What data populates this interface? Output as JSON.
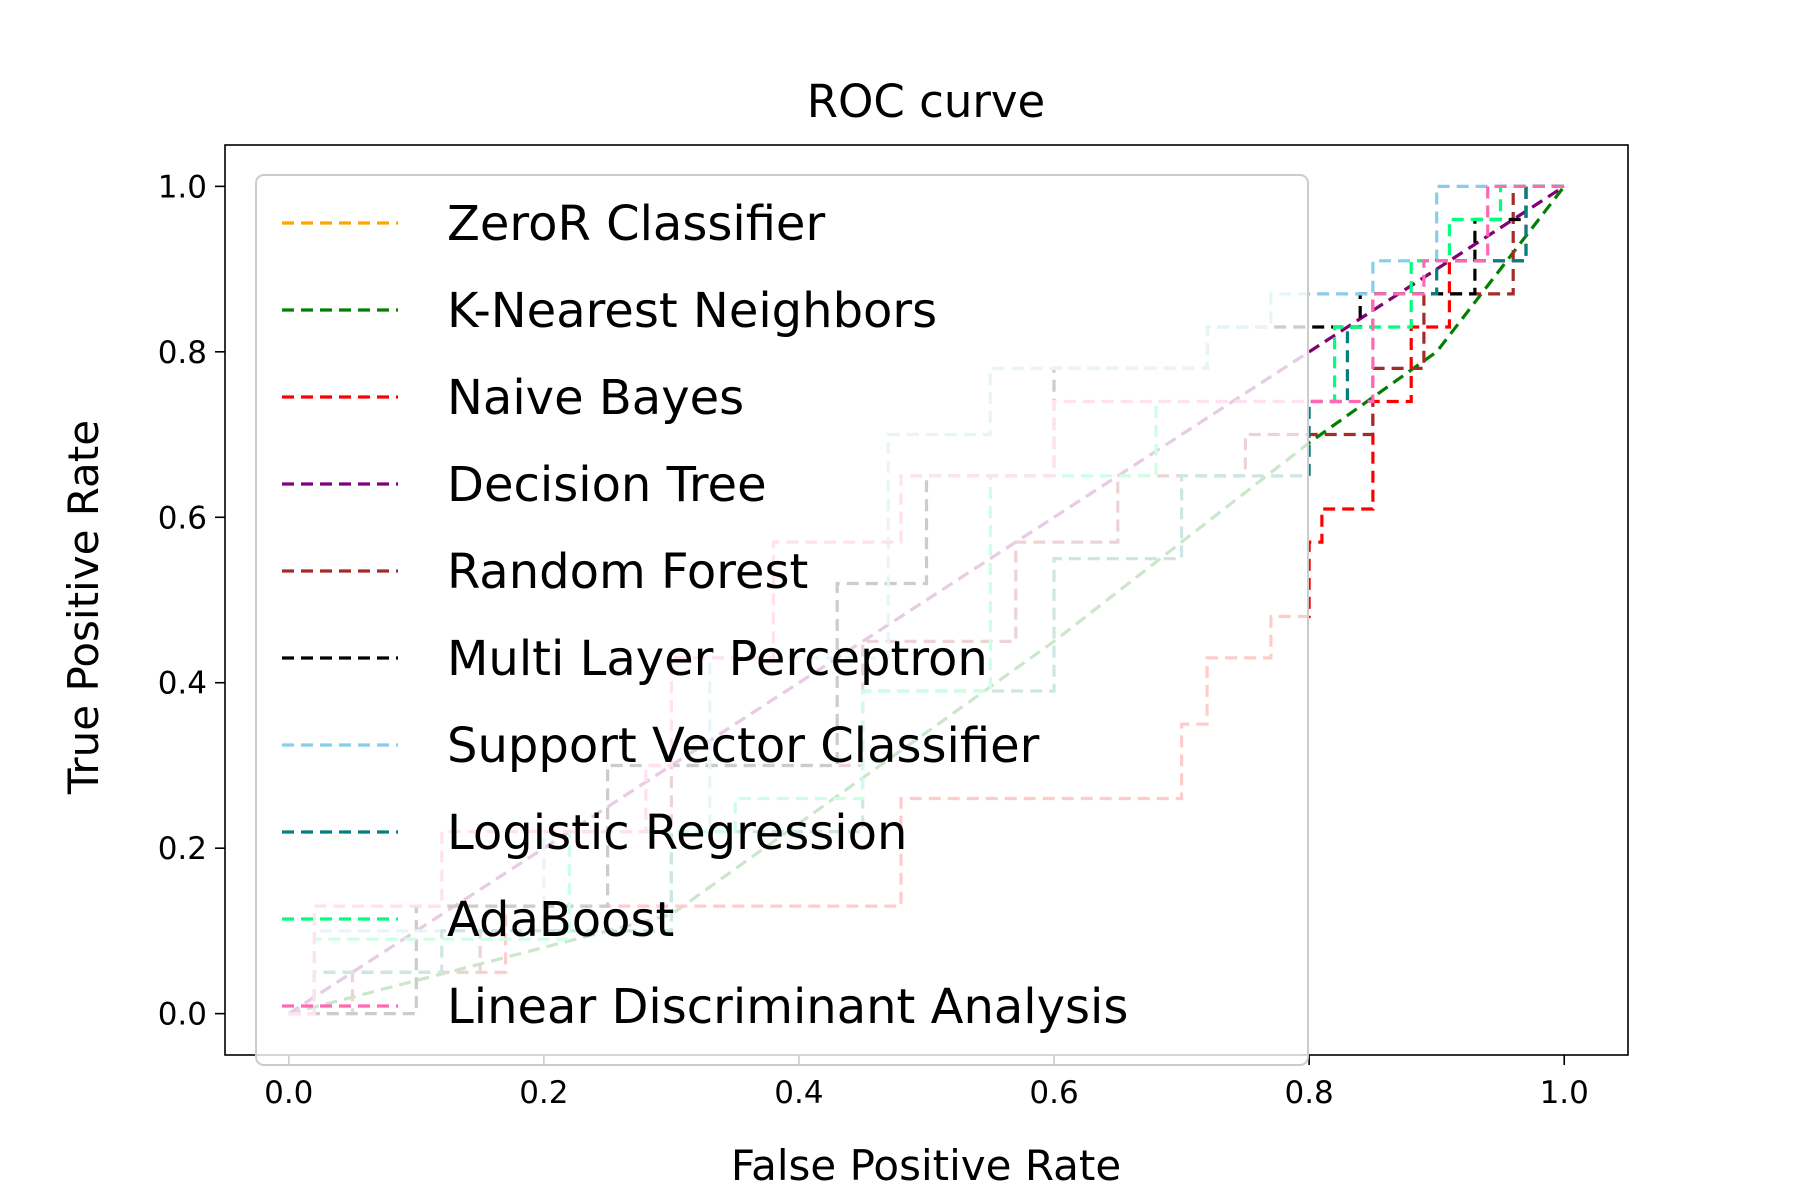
{
  "chart_data": {
    "type": "line",
    "title": "ROC curve",
    "xlabel": "False Positive Rate",
    "ylabel": "True Positive Rate",
    "xlim": [
      -0.05,
      1.05
    ],
    "ylim": [
      -0.05,
      1.05
    ],
    "xticks": [
      "0.0",
      "0.2",
      "0.4",
      "0.6",
      "0.8",
      "1.0"
    ],
    "yticks": [
      "0.0",
      "0.2",
      "0.4",
      "0.6",
      "0.8",
      "1.0"
    ],
    "legend_position": "upper-left",
    "grid": false,
    "series": [
      {
        "name": "ZeroR Classifier",
        "color": "#ffa500",
        "x": [
          0,
          1
        ],
        "y": [
          0,
          1
        ]
      },
      {
        "name": "K-Nearest Neighbors",
        "color": "#008000",
        "x": [
          0,
          0.3,
          0.6,
          0.8,
          0.9,
          1.0
        ],
        "y": [
          0,
          0.12,
          0.45,
          0.69,
          0.8,
          1.0
        ]
      },
      {
        "name": "Naive Bayes",
        "color": "#ff0000",
        "x": [
          0,
          0.02,
          0.02,
          0.17,
          0.17,
          0.48,
          0.48,
          0.7,
          0.7,
          0.72,
          0.72,
          0.77,
          0.77,
          0.8,
          0.8,
          0.81,
          0.81,
          0.82,
          0.82,
          0.85,
          0.85,
          0.88,
          0.88,
          0.91,
          0.91,
          0.97,
          0.97,
          1.0
        ],
        "y": [
          0,
          0,
          0.05,
          0.05,
          0.13,
          0.13,
          0.26,
          0.26,
          0.35,
          0.35,
          0.43,
          0.43,
          0.48,
          0.48,
          0.57,
          0.57,
          0.61,
          0.61,
          0.61,
          0.61,
          0.74,
          0.74,
          0.83,
          0.83,
          0.91,
          0.91,
          1.0,
          1.0
        ]
      },
      {
        "name": "Decision Tree",
        "color": "#800080",
        "x": [
          0,
          1
        ],
        "y": [
          0,
          1
        ]
      },
      {
        "name": "Random Forest",
        "color": "#a52a2a",
        "x": [
          0,
          0.05,
          0.05,
          0.15,
          0.15,
          0.3,
          0.3,
          0.45,
          0.45,
          0.57,
          0.57,
          0.65,
          0.65,
          0.75,
          0.75,
          0.8,
          0.8,
          0.85,
          0.85,
          0.89,
          0.89,
          0.96,
          0.96,
          1.0
        ],
        "y": [
          0,
          0,
          0.05,
          0.05,
          0.1,
          0.1,
          0.3,
          0.3,
          0.45,
          0.45,
          0.57,
          0.57,
          0.65,
          0.65,
          0.7,
          0.7,
          0.7,
          0.7,
          0.78,
          0.78,
          0.87,
          0.87,
          1.0,
          1.0
        ]
      },
      {
        "name": "Multi Layer Perceptron",
        "color": "#000000",
        "x": [
          0,
          0.1,
          0.1,
          0.25,
          0.25,
          0.43,
          0.43,
          0.5,
          0.5,
          0.6,
          0.6,
          0.72,
          0.72,
          0.8,
          0.8,
          0.84,
          0.84,
          0.85,
          0.85,
          0.93,
          0.93,
          0.97,
          0.97,
          1.0
        ],
        "y": [
          0,
          0,
          0.13,
          0.13,
          0.3,
          0.3,
          0.52,
          0.52,
          0.65,
          0.65,
          0.78,
          0.78,
          0.83,
          0.83,
          0.83,
          0.83,
          0.87,
          0.87,
          0.87,
          0.87,
          0.96,
          0.96,
          1.0,
          1.0
        ]
      },
      {
        "name": "Support Vector Classifier",
        "color": "#87ceeb",
        "x": [
          0,
          0.02,
          0.02,
          0.2,
          0.2,
          0.33,
          0.33,
          0.47,
          0.47,
          0.55,
          0.55,
          0.72,
          0.72,
          0.77,
          0.77,
          0.85,
          0.85,
          0.9,
          0.9,
          1.0
        ],
        "y": [
          0,
          0,
          0.1,
          0.1,
          0.22,
          0.22,
          0.43,
          0.43,
          0.7,
          0.7,
          0.78,
          0.78,
          0.83,
          0.83,
          0.87,
          0.87,
          0.91,
          0.91,
          1.0,
          1.0
        ]
      },
      {
        "name": "Logistic Regression",
        "color": "#008080",
        "x": [
          0,
          0.02,
          0.02,
          0.12,
          0.12,
          0.3,
          0.3,
          0.45,
          0.45,
          0.6,
          0.6,
          0.7,
          0.7,
          0.8,
          0.8,
          0.83,
          0.83,
          0.85,
          0.85,
          0.9,
          0.9,
          0.97,
          0.97,
          1.0
        ],
        "y": [
          0,
          0,
          0.05,
          0.05,
          0.1,
          0.1,
          0.22,
          0.22,
          0.39,
          0.39,
          0.55,
          0.55,
          0.65,
          0.65,
          0.74,
          0.74,
          0.83,
          0.83,
          0.87,
          0.87,
          0.91,
          0.91,
          1.0,
          1.0
        ]
      },
      {
        "name": "AdaBoost",
        "color": "#00ff7f",
        "x": [
          0,
          0.02,
          0.02,
          0.22,
          0.22,
          0.35,
          0.35,
          0.45,
          0.45,
          0.55,
          0.55,
          0.68,
          0.68,
          0.77,
          0.77,
          0.82,
          0.82,
          0.84,
          0.84,
          0.88,
          0.88,
          0.91,
          0.91,
          0.95,
          0.95,
          1.0
        ],
        "y": [
          0,
          0,
          0.09,
          0.09,
          0.22,
          0.22,
          0.26,
          0.26,
          0.39,
          0.39,
          0.65,
          0.65,
          0.74,
          0.74,
          0.74,
          0.74,
          0.83,
          0.83,
          0.83,
          0.83,
          0.91,
          0.91,
          0.96,
          0.96,
          1.0,
          1.0
        ]
      },
      {
        "name": "Linear Discriminant Analysis",
        "color": "#ff69b4",
        "x": [
          0,
          0.02,
          0.02,
          0.12,
          0.12,
          0.28,
          0.28,
          0.3,
          0.3,
          0.38,
          0.38,
          0.48,
          0.48,
          0.6,
          0.6,
          0.7,
          0.7,
          0.8,
          0.8,
          0.85,
          0.85,
          0.89,
          0.89,
          0.94,
          0.94,
          1.0
        ],
        "y": [
          0,
          0,
          0.13,
          0.13,
          0.22,
          0.22,
          0.3,
          0.3,
          0.43,
          0.43,
          0.57,
          0.57,
          0.65,
          0.65,
          0.74,
          0.74,
          0.74,
          0.74,
          0.74,
          0.74,
          0.87,
          0.87,
          0.91,
          0.91,
          1.0,
          1.0
        ]
      }
    ]
  }
}
